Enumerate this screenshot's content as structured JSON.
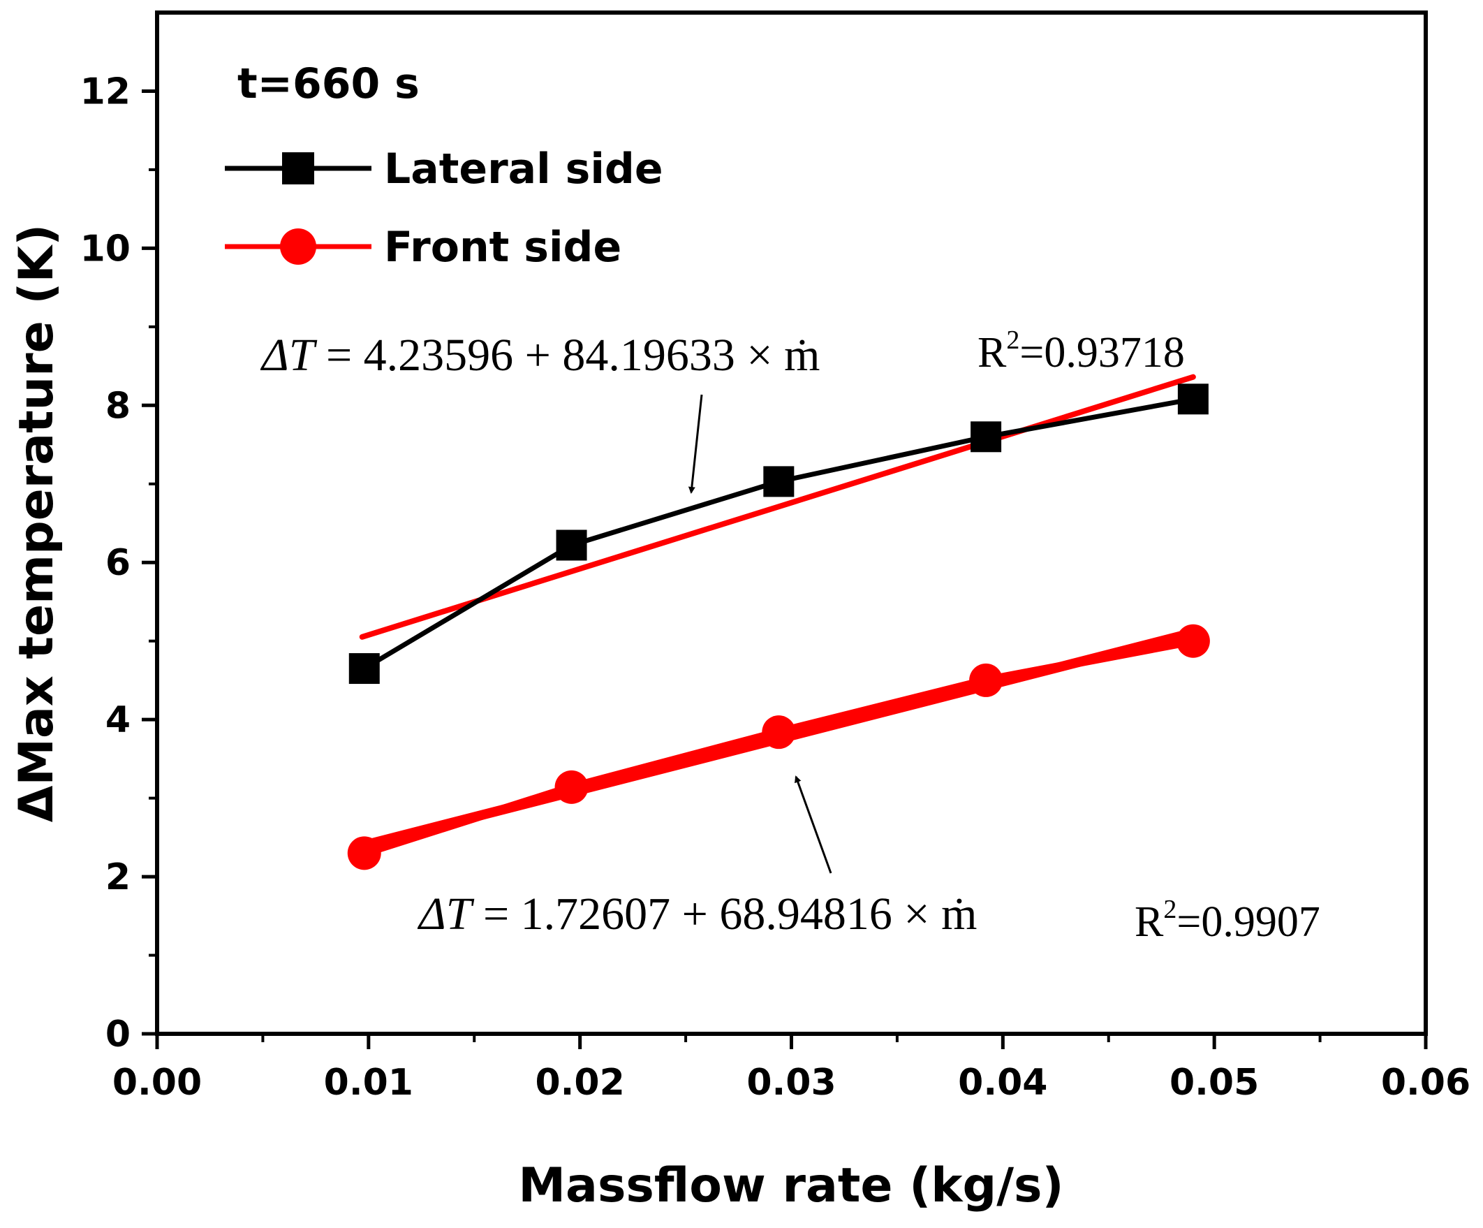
{
  "chart_data": {
    "type": "line",
    "xlabel": "Massflow rate (kg/s)",
    "ylabel": "ΔMax temperature (K)",
    "xlim": [
      0,
      0.06
    ],
    "ylim": [
      0,
      13
    ],
    "x_ticks": [
      "0.00",
      "0.01",
      "0.02",
      "0.03",
      "0.04",
      "0.05",
      "0.06"
    ],
    "y_ticks": [
      "0",
      "2",
      "4",
      "6",
      "8",
      "10",
      "12"
    ],
    "x_tick_values": [
      0,
      0.01,
      0.02,
      0.03,
      0.04,
      0.05,
      0.06
    ],
    "y_tick_values": [
      0,
      2,
      4,
      6,
      8,
      10,
      12
    ],
    "annotation_time": "t=660 s",
    "series": [
      {
        "name": "Lateral side",
        "color": "#000000",
        "marker": "square",
        "x": [
          0.0098,
          0.0196,
          0.0294,
          0.0392,
          0.049
        ],
        "values": [
          4.65,
          6.22,
          7.03,
          7.6,
          8.08
        ]
      },
      {
        "name": "Front side",
        "color": "#ff0000",
        "marker": "circle",
        "x": [
          0.0098,
          0.0196,
          0.0294,
          0.0392,
          0.049
        ],
        "values": [
          2.3,
          3.14,
          3.84,
          4.5,
          5.0
        ]
      }
    ],
    "fits": [
      {
        "series": "Lateral side",
        "color": "#ff0000",
        "intercept": 4.23596,
        "slope": 84.19633,
        "equation_lhs": "ΔT",
        "equation_rhs": " = 4.23596 + 84.19633 × ṁ",
        "r2_label": "R",
        "r2_value": "=0.93718",
        "x_range": [
          0.0097,
          0.049
        ]
      },
      {
        "series": "Front side",
        "color": "#ff0000",
        "intercept": 1.72607,
        "slope": 68.94816,
        "equation_lhs": "ΔT",
        "equation_rhs": " = 1.72607 + 68.94816 × ṁ",
        "r2_label": "R",
        "r2_value": "=0.9907",
        "x_range": [
          0.0098,
          0.049
        ]
      }
    ]
  }
}
